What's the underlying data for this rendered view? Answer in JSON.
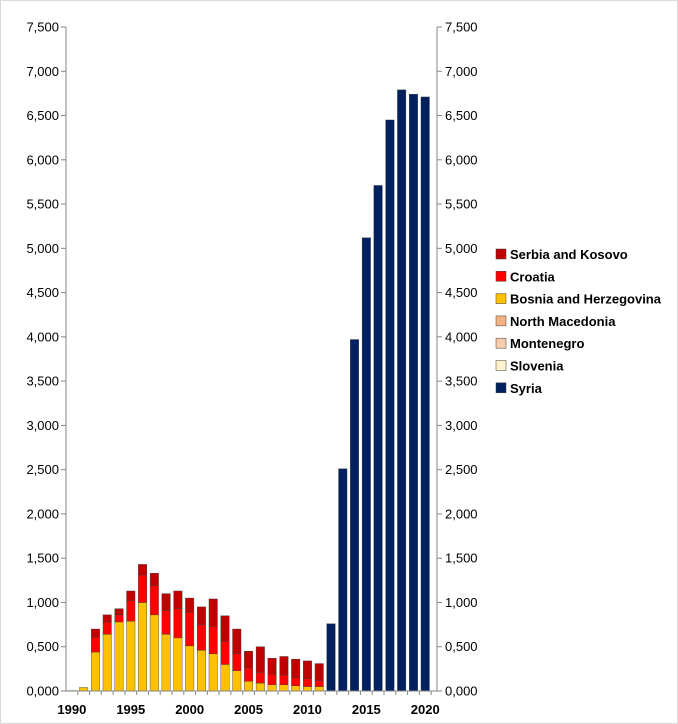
{
  "chart_data": {
    "type": "bar",
    "stacked": true,
    "x": [
      1990,
      1991,
      1992,
      1993,
      1994,
      1995,
      1996,
      1997,
      1998,
      1999,
      2000,
      2001,
      2002,
      2003,
      2004,
      2005,
      2006,
      2007,
      2008,
      2009,
      2010,
      2011,
      2012,
      2013,
      2014,
      2015,
      2016,
      2017,
      2018,
      2019,
      2020
    ],
    "x_tick_labels": [
      "1990",
      "1995",
      "2000",
      "2005",
      "2010",
      "2015",
      "2020"
    ],
    "y_tick_labels": [
      "0,000",
      "0,500",
      "1,000",
      "1,500",
      "2,000",
      "2,500",
      "3,000",
      "3,500",
      "4,000",
      "4,500",
      "5,000",
      "5,500",
      "6,000",
      "6,500",
      "7,000",
      "7,500"
    ],
    "ylim": [
      0,
      7500
    ],
    "y_step": 500,
    "grid": false,
    "legend_position": "right",
    "series": [
      {
        "name": "Slovenia",
        "color": "#fff2cc",
        "values": [
          0,
          0,
          0,
          0,
          0,
          0,
          0,
          0,
          0,
          0,
          0,
          0,
          0,
          0,
          0,
          0,
          0,
          0,
          0,
          0,
          0,
          0,
          0,
          0,
          0,
          0,
          0,
          0,
          0,
          0,
          0
        ]
      },
      {
        "name": "Montenegro",
        "color": "#f8cbad",
        "values": [
          0,
          0,
          0,
          0,
          0,
          0,
          0,
          0,
          0,
          0,
          0,
          0,
          0,
          0,
          0,
          0,
          0,
          0,
          0,
          0,
          0,
          0,
          0,
          0,
          0,
          0,
          0,
          0,
          0,
          0,
          0
        ]
      },
      {
        "name": "North Macedonia",
        "color": "#f4b183",
        "values": [
          0,
          0,
          0,
          0,
          0,
          0,
          0,
          0,
          0,
          0,
          0,
          0,
          0,
          0,
          0,
          0,
          0,
          0,
          0,
          0,
          0,
          0,
          0,
          0,
          0,
          0,
          0,
          0,
          0,
          0,
          0
        ]
      },
      {
        "name": "Bosnia and Herzegovina",
        "color": "#ffc000",
        "values": [
          5,
          40,
          440,
          640,
          780,
          790,
          1000,
          860,
          640,
          600,
          510,
          460,
          420,
          300,
          230,
          110,
          90,
          70,
          70,
          60,
          50,
          50,
          0,
          0,
          0,
          0,
          0,
          0,
          0,
          0,
          0
        ]
      },
      {
        "name": "Croatia",
        "color": "#ff0000",
        "values": [
          0,
          0,
          170,
          140,
          80,
          230,
          310,
          330,
          270,
          330,
          380,
          290,
          310,
          260,
          190,
          150,
          120,
          120,
          110,
          90,
          90,
          70,
          0,
          0,
          0,
          0,
          0,
          0,
          0,
          0,
          0
        ]
      },
      {
        "name": "Serbia and Kosovo",
        "color": "#c00000",
        "values": [
          0,
          0,
          90,
          80,
          70,
          110,
          120,
          140,
          190,
          200,
          160,
          200,
          310,
          290,
          280,
          190,
          290,
          180,
          210,
          210,
          200,
          190,
          0,
          0,
          0,
          0,
          0,
          0,
          0,
          0,
          0
        ]
      },
      {
        "name": "Syria",
        "color": "#002060",
        "values": [
          0,
          0,
          0,
          0,
          0,
          0,
          0,
          0,
          0,
          0,
          0,
          0,
          0,
          0,
          0,
          0,
          0,
          0,
          0,
          0,
          0,
          0,
          760,
          2510,
          3970,
          5120,
          5710,
          6450,
          6790,
          6740,
          6710
        ]
      }
    ],
    "legend_order": [
      "Serbia and Kosovo",
      "Croatia",
      "Bosnia and Herzegovina",
      "North Macedonia",
      "Montenegro",
      "Slovenia",
      "Syria"
    ]
  }
}
